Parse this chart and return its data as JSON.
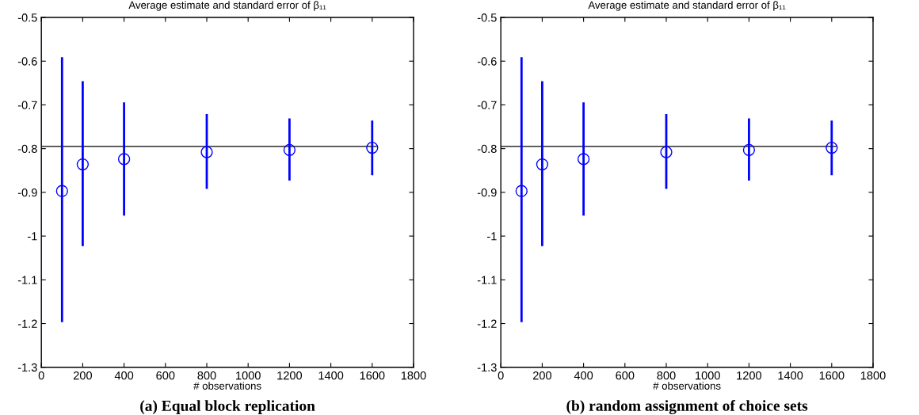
{
  "chart_data": [
    {
      "type": "scatter",
      "title": "Average estimate and standard error of β₁₁",
      "xlabel": "# observations",
      "annotations": [
        "(a) Equal block replication"
      ],
      "xlim": [
        0,
        1800
      ],
      "xticks": [
        0,
        200,
        400,
        600,
        800,
        1000,
        1200,
        1400,
        1600,
        1800
      ],
      "ylim": [
        -1.3,
        -0.5
      ],
      "yticks": [
        -1.3,
        -1.2,
        -1.1,
        -1,
        -0.9,
        -0.8,
        -0.7,
        -0.6,
        -0.5
      ],
      "grid": false,
      "marker": "circle",
      "series": [
        {
          "color": "#0000ff",
          "x": [
            100,
            200,
            400,
            800,
            1200,
            1600
          ],
          "values": [
            -0.897,
            -0.836,
            -0.824,
            -0.808,
            -0.803,
            -0.798
          ],
          "errors": [
            [
              -1.197,
              -0.591
            ],
            [
              -1.023,
              -0.646
            ],
            [
              -0.953,
              -0.694
            ],
            [
              -0.892,
              -0.721
            ],
            [
              -0.873,
              -0.731
            ],
            [
              -0.861,
              -0.736
            ]
          ]
        },
        {
          "type": "line",
          "marker": "none",
          "color": "#000000",
          "x": [
            0,
            1620
          ],
          "values": [
            -0.795,
            -0.795
          ]
        }
      ]
    },
    {
      "type": "scatter",
      "title": "Average estimate and standard error of β₁₁",
      "xlabel": "# observations",
      "annotations": [
        "(b) random assignment of choice sets"
      ],
      "xlim": [
        0,
        1800
      ],
      "xticks": [
        0,
        200,
        400,
        600,
        800,
        1000,
        1200,
        1400,
        1600,
        1800
      ],
      "ylim": [
        -1.3,
        -0.5
      ],
      "yticks": [
        -1.3,
        -1.2,
        -1.1,
        -1,
        -0.9,
        -0.8,
        -0.7,
        -0.6,
        -0.5
      ],
      "grid": false,
      "marker": "circle",
      "series": [
        {
          "color": "#0000ff",
          "x": [
            100,
            200,
            400,
            800,
            1200,
            1600
          ],
          "values": [
            -0.897,
            -0.836,
            -0.824,
            -0.808,
            -0.803,
            -0.798
          ],
          "errors": [
            [
              -1.197,
              -0.591
            ],
            [
              -1.023,
              -0.646
            ],
            [
              -0.953,
              -0.694
            ],
            [
              -0.892,
              -0.721
            ],
            [
              -0.873,
              -0.731
            ],
            [
              -0.861,
              -0.736
            ]
          ]
        },
        {
          "type": "line",
          "marker": "none",
          "color": "#000000",
          "x": [
            0,
            1620
          ],
          "values": [
            -0.795,
            -0.795
          ]
        }
      ]
    }
  ]
}
